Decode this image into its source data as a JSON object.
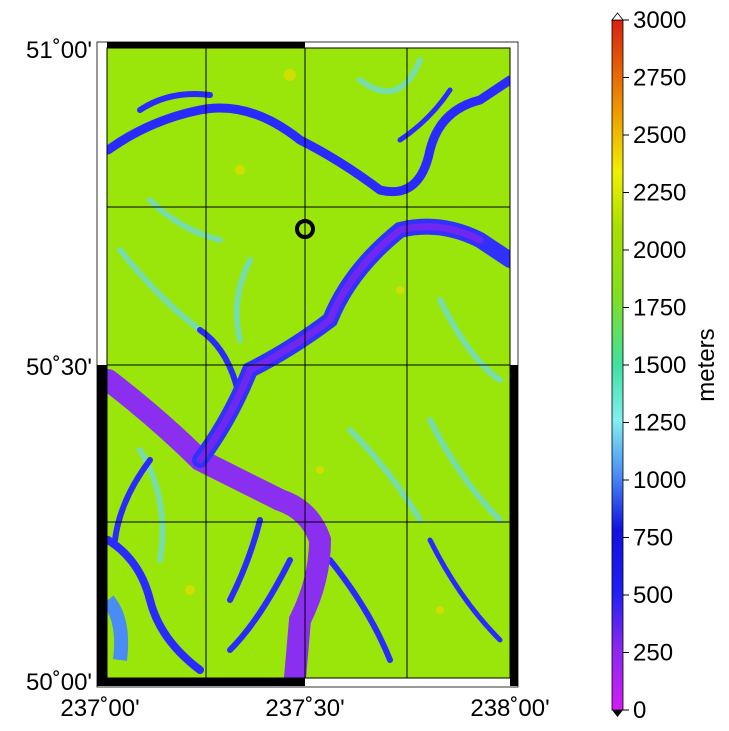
{
  "map": {
    "lat_labels": [
      "51˚00'",
      "50˚30'",
      "50˚00'"
    ],
    "lon_labels": [
      "237˚00'",
      "237˚30'",
      "238˚00'"
    ]
  },
  "colorbar": {
    "label": "meters",
    "range": [
      0,
      3000
    ],
    "ticks": [
      0,
      250,
      500,
      750,
      1000,
      1250,
      1500,
      1750,
      2000,
      2250,
      2500,
      2750,
      3000
    ]
  }
}
